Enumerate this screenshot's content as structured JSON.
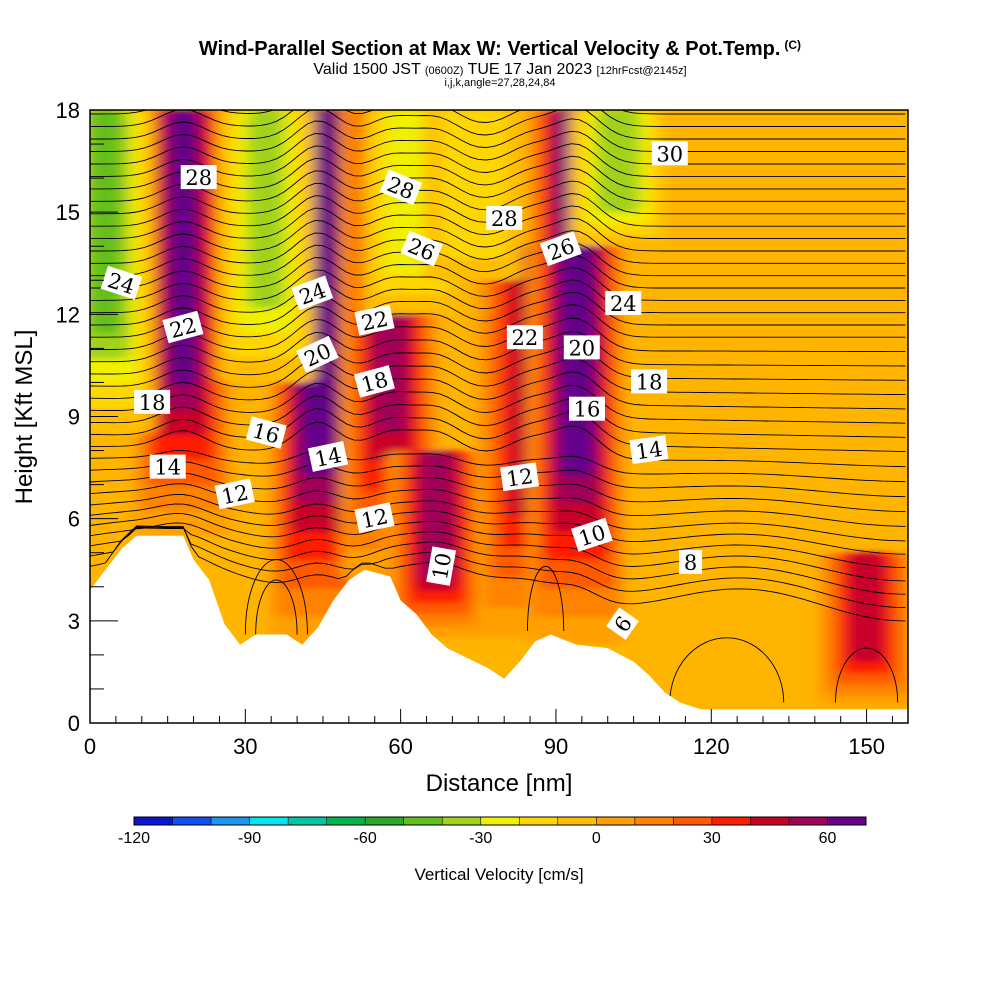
{
  "header": {
    "title": "Wind-Parallel Section at Max W: Vertical Velocity & Pot.Temp.",
    "title_mark": "(C)",
    "valid_prefix": "Valid 1500 JST",
    "valid_utc": "(0600Z)",
    "valid_date": "TUE 17 Jan 2023",
    "forecast_info": "[12hrFcst@2145z]",
    "indices": "i,j,k,angle=27,28,24,84"
  },
  "chart_data": {
    "type": "heatmap",
    "xlabel": "Distance [nm]",
    "ylabel": "Height [Kft MSL]",
    "xlim": [
      0,
      158
    ],
    "ylim": [
      0,
      18
    ],
    "x_ticks": [
      0,
      30,
      60,
      90,
      120,
      150
    ],
    "y_ticks": [
      0,
      3,
      6,
      9,
      12,
      15,
      18
    ],
    "terrain_kft": [
      [
        0,
        3.9
      ],
      [
        3,
        4.5
      ],
      [
        6,
        5.1
      ],
      [
        9,
        5.5
      ],
      [
        18,
        5.5
      ],
      [
        20,
        4.8
      ],
      [
        23,
        4.2
      ],
      [
        26,
        2.9
      ],
      [
        29,
        2.3
      ],
      [
        32,
        2.6
      ],
      [
        38,
        2.6
      ],
      [
        41,
        2.3
      ],
      [
        44,
        2.8
      ],
      [
        47,
        3.6
      ],
      [
        50,
        4.2
      ],
      [
        53,
        4.5
      ],
      [
        58,
        4.3
      ],
      [
        60,
        3.6
      ],
      [
        63,
        3.2
      ],
      [
        66,
        2.6
      ],
      [
        69,
        2.2
      ],
      [
        73,
        1.9
      ],
      [
        77,
        1.6
      ],
      [
        80,
        1.3
      ],
      [
        83,
        1.8
      ],
      [
        86,
        2.4
      ],
      [
        89,
        2.6
      ],
      [
        94,
        2.3
      ],
      [
        100,
        2.2
      ],
      [
        105,
        1.8
      ],
      [
        108,
        1.4
      ],
      [
        111,
        0.9
      ],
      [
        114,
        0.6
      ],
      [
        118,
        0.4
      ],
      [
        158,
        0.4
      ]
    ],
    "updraft_columns": [
      {
        "x": 18,
        "w": 60,
        "top": 18,
        "bottom": 5.5
      },
      {
        "x": 44,
        "w": 70,
        "top": 18,
        "bottom": 2.3
      },
      {
        "x": 58,
        "w": 55,
        "top": 18,
        "bottom": 4.2
      },
      {
        "x": 67,
        "w": 55,
        "top": 8,
        "bottom": 2.5
      },
      {
        "x": 84,
        "w": 40,
        "top": 14,
        "bottom": 2.5
      },
      {
        "x": 94,
        "w": 70,
        "top": 18,
        "bottom": 2.3
      },
      {
        "x": 150,
        "w": 45,
        "top": 5,
        "bottom": 0.5
      }
    ],
    "downdraft_columns": [
      {
        "x": 3,
        "w": -40,
        "top": 18,
        "bottom": 8.5
      },
      {
        "x": 34,
        "w": -30,
        "top": 18,
        "bottom": 10
      },
      {
        "x": 62,
        "w": -25,
        "top": 18,
        "bottom": 12
      },
      {
        "x": 74,
        "w": -15,
        "top": 18,
        "bottom": 13
      },
      {
        "x": 102,
        "w": -35,
        "top": 18,
        "bottom": 14
      }
    ],
    "contour_labels": [
      {
        "text": "28",
        "x": 21,
        "y": 16.0,
        "rot": 0
      },
      {
        "text": "28",
        "x": 60,
        "y": 15.7,
        "rot": 22
      },
      {
        "text": "28",
        "x": 80,
        "y": 14.8,
        "rot": 0
      },
      {
        "text": "30",
        "x": 112,
        "y": 16.7,
        "rot": 0
      },
      {
        "text": "24",
        "x": 6,
        "y": 12.9,
        "rot": 18
      },
      {
        "text": "26",
        "x": 64,
        "y": 13.9,
        "rot": 22
      },
      {
        "text": "26",
        "x": 91,
        "y": 13.9,
        "rot": -20
      },
      {
        "text": "24",
        "x": 43,
        "y": 12.6,
        "rot": -20
      },
      {
        "text": "24",
        "x": 103,
        "y": 12.3,
        "rot": 0
      },
      {
        "text": "22",
        "x": 18,
        "y": 11.6,
        "rot": -15
      },
      {
        "text": "22",
        "x": 55,
        "y": 11.8,
        "rot": -12
      },
      {
        "text": "22",
        "x": 84,
        "y": 11.3,
        "rot": 0
      },
      {
        "text": "20",
        "x": 44,
        "y": 10.8,
        "rot": -25
      },
      {
        "text": "20",
        "x": 95,
        "y": 11.0,
        "rot": 0
      },
      {
        "text": "18",
        "x": 12,
        "y": 9.4,
        "rot": 0
      },
      {
        "text": "18",
        "x": 55,
        "y": 10.0,
        "rot": -15
      },
      {
        "text": "18",
        "x": 108,
        "y": 10.0,
        "rot": 0
      },
      {
        "text": "16",
        "x": 34,
        "y": 8.5,
        "rot": 15
      },
      {
        "text": "16",
        "x": 96,
        "y": 9.2,
        "rot": 0
      },
      {
        "text": "14",
        "x": 15,
        "y": 7.5,
        "rot": 0
      },
      {
        "text": "14",
        "x": 46,
        "y": 7.8,
        "rot": -12
      },
      {
        "text": "14",
        "x": 108,
        "y": 8.0,
        "rot": -8
      },
      {
        "text": "12",
        "x": 28,
        "y": 6.7,
        "rot": -12
      },
      {
        "text": "12",
        "x": 55,
        "y": 6.0,
        "rot": -12
      },
      {
        "text": "12",
        "x": 83,
        "y": 7.2,
        "rot": -8
      },
      {
        "text": "10",
        "x": 68,
        "y": 4.6,
        "rot": -80
      },
      {
        "text": "10",
        "x": 97,
        "y": 5.5,
        "rot": -18
      },
      {
        "text": "8",
        "x": 116,
        "y": 4.7,
        "rot": 0
      },
      {
        "text": "6",
        "x": 103,
        "y": 2.9,
        "rot": -55
      }
    ]
  },
  "colorbar": {
    "title": "Vertical Velocity [cm/s]",
    "min": -120,
    "max": 70,
    "step": 10,
    "tick_labels": [
      -120,
      -90,
      -60,
      -30,
      0,
      30,
      60
    ],
    "colors": [
      "#0a14d2",
      "#1450f0",
      "#1e96f0",
      "#00e6f0",
      "#00c8a0",
      "#00b450",
      "#28aa2a",
      "#64be1e",
      "#a0d21e",
      "#f0f000",
      "#ffd700",
      "#ffbe00",
      "#ffa000",
      "#ff8200",
      "#ff5a00",
      "#ff1e00",
      "#c8002a",
      "#a0005a",
      "#64008c"
    ]
  }
}
